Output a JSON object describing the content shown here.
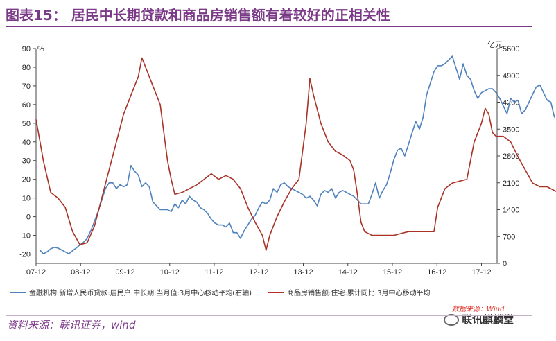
{
  "title": "图表15： 居民中长期贷款和商品房销售额有着较好的正相关性",
  "source": "资料来源：联讯证券，wind",
  "watermark": {
    "source_red": "数据来源：Wind",
    "account": "联讯麒麟堂"
  },
  "chart_data": {
    "type": "line",
    "left_axis": {
      "unit": "%",
      "ylim": [
        -25,
        90
      ],
      "ticks": [
        -20,
        -10,
        0,
        10,
        20,
        30,
        40,
        50,
        60,
        70,
        80,
        90
      ]
    },
    "right_axis": {
      "unit": "亿元",
      "ylim": [
        0,
        5600
      ],
      "ticks": [
        0,
        700,
        1400,
        2100,
        2800,
        3500,
        4200,
        4900,
        5600
      ]
    },
    "x_ticks": [
      "07-12",
      "08-12",
      "09-12",
      "10-12",
      "11-12",
      "12-12",
      "13-12",
      "14-12",
      "15-12",
      "16-12",
      "17-12"
    ],
    "series": [
      {
        "name": "金融机构:新增人民币贷款:居民户:中长期:当月值:3月中心移动平均(右轴)",
        "color": "#4f81bd",
        "axis": "right",
        "points": [
          [
            0.5,
            350
          ],
          [
            1,
            250
          ],
          [
            1.5,
            300
          ],
          [
            2,
            380
          ],
          [
            2.5,
            420
          ],
          [
            3,
            400
          ],
          [
            3.5,
            350
          ],
          [
            4,
            300
          ],
          [
            4.5,
            250
          ],
          [
            5,
            330
          ],
          [
            5.5,
            400
          ],
          [
            6,
            480
          ],
          [
            6.5,
            550
          ],
          [
            7,
            650
          ],
          [
            7.5,
            850
          ],
          [
            8,
            1100
          ],
          [
            8.5,
            1350
          ],
          [
            9,
            1650
          ],
          [
            9.5,
            1950
          ],
          [
            10,
            2100
          ],
          [
            10.5,
            2100
          ],
          [
            11,
            1950
          ],
          [
            11.5,
            2050
          ],
          [
            12,
            2000
          ],
          [
            12.5,
            2050
          ],
          [
            13,
            2550
          ],
          [
            13.5,
            2400
          ],
          [
            14,
            2300
          ],
          [
            14.5,
            2000
          ],
          [
            15,
            2100
          ],
          [
            15.5,
            2000
          ],
          [
            16,
            1600
          ],
          [
            16.5,
            1500
          ],
          [
            17,
            1400
          ],
          [
            17.5,
            1400
          ],
          [
            18,
            1400
          ],
          [
            18.5,
            1350
          ],
          [
            19,
            1550
          ],
          [
            19.5,
            1450
          ],
          [
            20,
            1650
          ],
          [
            20.5,
            1550
          ],
          [
            21,
            1750
          ],
          [
            21.5,
            1650
          ],
          [
            22,
            1600
          ],
          [
            22.5,
            1450
          ],
          [
            23,
            1400
          ],
          [
            23.5,
            1300
          ],
          [
            24,
            1150
          ],
          [
            24.5,
            1050
          ],
          [
            25,
            1000
          ],
          [
            25.5,
            1000
          ],
          [
            26,
            950
          ],
          [
            26.5,
            1050
          ],
          [
            27,
            800
          ],
          [
            27.5,
            800
          ],
          [
            28,
            650
          ],
          [
            28.5,
            850
          ],
          [
            29,
            1000
          ],
          [
            29.5,
            1150
          ],
          [
            30,
            1250
          ],
          [
            30.5,
            1450
          ],
          [
            31,
            1600
          ],
          [
            31.5,
            1550
          ],
          [
            32,
            1650
          ],
          [
            32.5,
            1950
          ],
          [
            33,
            1850
          ],
          [
            33.5,
            2050
          ],
          [
            34,
            2100
          ],
          [
            34.5,
            2000
          ],
          [
            35,
            1950
          ],
          [
            35.5,
            1900
          ],
          [
            36,
            1850
          ],
          [
            36.5,
            1800
          ],
          [
            37,
            1700
          ],
          [
            37.5,
            1750
          ],
          [
            38,
            1650
          ],
          [
            38.5,
            1500
          ],
          [
            39,
            1800
          ],
          [
            39.5,
            1900
          ],
          [
            40,
            1850
          ],
          [
            40.5,
            1950
          ],
          [
            41,
            1700
          ],
          [
            41.5,
            1850
          ],
          [
            42,
            1900
          ],
          [
            42.5,
            1850
          ],
          [
            43,
            1800
          ],
          [
            43.5,
            1750
          ],
          [
            44,
            1650
          ],
          [
            44.5,
            1550
          ],
          [
            45,
            1550
          ],
          [
            45.5,
            1550
          ],
          [
            46,
            1800
          ],
          [
            46.5,
            2100
          ],
          [
            47,
            1700
          ],
          [
            47.5,
            1900
          ],
          [
            48,
            2050
          ],
          [
            48.5,
            2350
          ],
          [
            49,
            2700
          ],
          [
            49.5,
            2950
          ],
          [
            50,
            3000
          ],
          [
            50.5,
            2800
          ],
          [
            51,
            3100
          ],
          [
            51.5,
            3400
          ],
          [
            52,
            3700
          ],
          [
            52.5,
            3500
          ],
          [
            53,
            3800
          ],
          [
            53.5,
            4400
          ],
          [
            54,
            4700
          ],
          [
            54.5,
            5000
          ],
          [
            55,
            5150
          ],
          [
            55.5,
            5150
          ],
          [
            56,
            5200
          ],
          [
            56.5,
            5300
          ],
          [
            57,
            5400
          ],
          [
            57.5,
            5100
          ],
          [
            58,
            4800
          ],
          [
            58.5,
            5200
          ],
          [
            59,
            4900
          ],
          [
            59.5,
            4800
          ],
          [
            60,
            4500
          ],
          [
            60.5,
            4300
          ],
          [
            61,
            4450
          ],
          [
            61.5,
            4500
          ],
          [
            62,
            4550
          ],
          [
            62.5,
            4550
          ],
          [
            63,
            4450
          ],
          [
            63.5,
            4300
          ],
          [
            64,
            4100
          ],
          [
            64.5,
            3900
          ],
          [
            65,
            4300
          ],
          [
            65.5,
            4200
          ],
          [
            66,
            4250
          ],
          [
            66.5,
            3900
          ],
          [
            67,
            4000
          ],
          [
            67.5,
            4200
          ],
          [
            68,
            4400
          ],
          [
            68.5,
            4600
          ],
          [
            69,
            4650
          ],
          [
            69.5,
            4450
          ],
          [
            70,
            4250
          ],
          [
            70.5,
            4200
          ],
          [
            71,
            3800
          ]
        ]
      },
      {
        "name": "商品房销售额:住宅:累计同比:3月中心移动平均",
        "color": "#a93226",
        "axis": "left",
        "points": [
          [
            0,
            52
          ],
          [
            1,
            30
          ],
          [
            2,
            13
          ],
          [
            3,
            10
          ],
          [
            4,
            5
          ],
          [
            5,
            -8
          ],
          [
            6,
            -15
          ],
          [
            7,
            -14
          ],
          [
            8,
            -5
          ],
          [
            9,
            10
          ],
          [
            10,
            25
          ],
          [
            11,
            40
          ],
          [
            12,
            55
          ],
          [
            13,
            65
          ],
          [
            14,
            75
          ],
          [
            14.5,
            85
          ],
          [
            15,
            80
          ],
          [
            16,
            70
          ],
          [
            17,
            60
          ],
          [
            17.5,
            45
          ],
          [
            18,
            30
          ],
          [
            18.5,
            20
          ],
          [
            19,
            12
          ],
          [
            20,
            13
          ],
          [
            21,
            15
          ],
          [
            22,
            17
          ],
          [
            23,
            20
          ],
          [
            24,
            23
          ],
          [
            25,
            20
          ],
          [
            26,
            22
          ],
          [
            27,
            20
          ],
          [
            28,
            15
          ],
          [
            29,
            5
          ],
          [
            30,
            -3
          ],
          [
            31,
            -10
          ],
          [
            31.5,
            -18
          ],
          [
            32,
            -10
          ],
          [
            33,
            0
          ],
          [
            34,
            8
          ],
          [
            35,
            15
          ],
          [
            36,
            20
          ],
          [
            37,
            50
          ],
          [
            37.5,
            74
          ],
          [
            38,
            65
          ],
          [
            39,
            50
          ],
          [
            40,
            40
          ],
          [
            41,
            35
          ],
          [
            42,
            33
          ],
          [
            43,
            30
          ],
          [
            43.5,
            25
          ],
          [
            44,
            12
          ],
          [
            44.5,
            -3
          ],
          [
            45,
            -8
          ],
          [
            46,
            -10
          ],
          [
            47,
            -10
          ],
          [
            48,
            -10
          ],
          [
            49,
            -10
          ],
          [
            50,
            -9
          ],
          [
            51,
            -8
          ],
          [
            52,
            -8
          ],
          [
            53,
            -8
          ],
          [
            54,
            -8
          ],
          [
            54.5,
            -8
          ],
          [
            55,
            5
          ],
          [
            56,
            15
          ],
          [
            57,
            18
          ],
          [
            58,
            19
          ],
          [
            59,
            20
          ],
          [
            60,
            40
          ],
          [
            61,
            50
          ],
          [
            61.5,
            58
          ],
          [
            62,
            55
          ],
          [
            62.5,
            45
          ],
          [
            63,
            43
          ],
          [
            64,
            43
          ],
          [
            65,
            40
          ],
          [
            66,
            32
          ],
          [
            67,
            25
          ],
          [
            68,
            18
          ],
          [
            69,
            16
          ],
          [
            70,
            16
          ],
          [
            71,
            14
          ],
          [
            72,
            12
          ],
          [
            73,
            11
          ],
          [
            74,
            11
          ],
          [
            75,
            12
          ],
          [
            76,
            12
          ],
          [
            77,
            13
          ],
          [
            78,
            15
          ],
          [
            79,
            16
          ],
          [
            80,
            15
          ]
        ]
      }
    ]
  }
}
